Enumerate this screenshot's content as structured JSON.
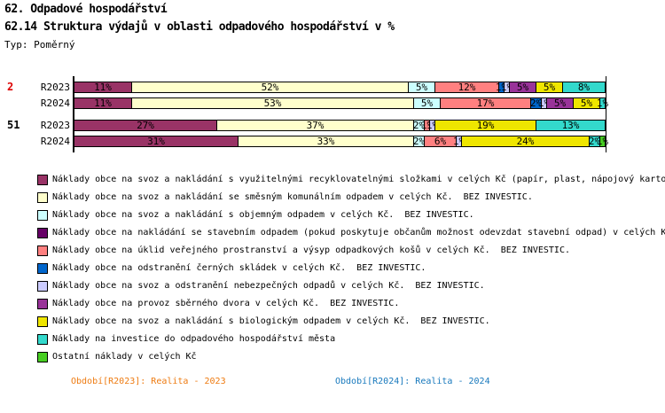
{
  "title": "62. Odpadové hospodářství",
  "subtitle": "62.14 Struktura výdajů v oblasti odpadového hospodářství v %",
  "type_label": "Typ: Poměrný",
  "chart_data": {
    "type": "bar",
    "stacked": true,
    "orientation": "horizontal",
    "unit": "%",
    "xlim": [
      0,
      100
    ],
    "grid": false,
    "legend_position": "bottom",
    "legend": [
      {
        "label": "Náklady obce na svoz a nakládání s využitelnými recyklovatelnými složkami v celých Kč (papír, plast, nápojový karto",
        "color": "#993366"
      },
      {
        "label": "Náklady obce na svoz a nakládání se směsným komunálním odpadem v celých Kč.  BEZ INVESTIC.",
        "color": "#FFFFCC"
      },
      {
        "label": "Náklady obce na svoz a nakládání s objemným odpadem v celých Kč.  BEZ INVESTIC.",
        "color": "#CCFFFF"
      },
      {
        "label": "Náklady obce na nakládání se stavebním odpadem (pokud poskytuje občanům možnost odevzdat stavební odpad) v celých K",
        "color": "#660066"
      },
      {
        "label": "Náklady obce na úklid veřejného prostranství a výsyp odpadkových košů v celých Kč.  BEZ INVESTIC.",
        "color": "#FF8080"
      },
      {
        "label": "Náklady obce na odstranění černých skládek v celých Kč.  BEZ INVESTIC.",
        "color": "#0066CC"
      },
      {
        "label": "Náklady obce na svoz a odstranění nebezpečných odpadů v celých Kč.  BEZ INVESTIC.",
        "color": "#CCCCFF"
      },
      {
        "label": "Náklady obce na provoz sběrného dvora v celých Kč.  BEZ INVESTIC.",
        "color": "#993399"
      },
      {
        "label": "Náklady obce na svoz a nakládání s biologickým odpadem v celých Kč.  BEZ INVESTIC.",
        "color": "#EFE600"
      },
      {
        "label": "Náklady na investice do odpadového hospodářství města",
        "color": "#33D9CC"
      },
      {
        "label": "Ostatní náklady v celých Kč",
        "color": "#47CE22"
      }
    ],
    "groups": [
      {
        "entity": "2",
        "entity_color": "#DD0000",
        "rows": [
          {
            "label": "R2023",
            "segments": [
              {
                "legend": 0,
                "value": 11,
                "text": "11%"
              },
              {
                "legend": 1,
                "value": 52,
                "text": "52%"
              },
              {
                "legend": 2,
                "value": 5,
                "text": "5%"
              },
              {
                "legend": 4,
                "value": 12,
                "text": "12%"
              },
              {
                "legend": 5,
                "value": 1,
                "text": "1%"
              },
              {
                "legend": 6,
                "value": 1,
                "text": "1%"
              },
              {
                "legend": 7,
                "value": 5,
                "text": "5%"
              },
              {
                "legend": 8,
                "value": 5,
                "text": "5%"
              },
              {
                "legend": 9,
                "value": 8,
                "text": "8%"
              }
            ]
          },
          {
            "label": "R2024",
            "segments": [
              {
                "legend": 0,
                "value": 11,
                "text": "11%"
              },
              {
                "legend": 1,
                "value": 53,
                "text": "53%"
              },
              {
                "legend": 2,
                "value": 5,
                "text": "5%"
              },
              {
                "legend": 4,
                "value": 17,
                "text": "17%"
              },
              {
                "legend": 5,
                "value": 2,
                "text": "2%"
              },
              {
                "legend": 6,
                "value": 1,
                "text": "1%"
              },
              {
                "legend": 7,
                "value": 5,
                "text": "5%"
              },
              {
                "legend": 8,
                "value": 5,
                "text": "5%"
              },
              {
                "legend": 9,
                "value": 1,
                "text": "1%"
              }
            ]
          }
        ]
      },
      {
        "entity": "51",
        "entity_color": "#000000",
        "rows": [
          {
            "label": "R2023",
            "segments": [
              {
                "legend": 0,
                "value": 27,
                "text": "27%"
              },
              {
                "legend": 1,
                "value": 37,
                "text": "37%"
              },
              {
                "legend": 2,
                "value": 2,
                "text": "2%"
              },
              {
                "legend": 4,
                "value": 1,
                "text": "1%"
              },
              {
                "legend": 6,
                "value": 1,
                "text": "1%"
              },
              {
                "legend": 8,
                "value": 19,
                "text": "19%"
              },
              {
                "legend": 9,
                "value": 13,
                "text": "13%"
              }
            ]
          },
          {
            "label": "R2024",
            "segments": [
              {
                "legend": 0,
                "value": 31,
                "text": "31%"
              },
              {
                "legend": 1,
                "value": 33,
                "text": "33%"
              },
              {
                "legend": 2,
                "value": 2,
                "text": "2%"
              },
              {
                "legend": 4,
                "value": 6,
                "text": "6%"
              },
              {
                "legend": 6,
                "value": 1,
                "text": "1%"
              },
              {
                "legend": 8,
                "value": 24,
                "text": "24%"
              },
              {
                "legend": 9,
                "value": 2,
                "text": "2%"
              },
              {
                "legend": 10,
                "value": 1,
                "text": "1%"
              }
            ]
          }
        ]
      }
    ]
  },
  "footer": {
    "left": "Období[R2023]: Realita - 2023",
    "left_color": "#EE7B11",
    "right": "Období[R2024]: Realita - 2024",
    "right_color": "#1879BD"
  }
}
